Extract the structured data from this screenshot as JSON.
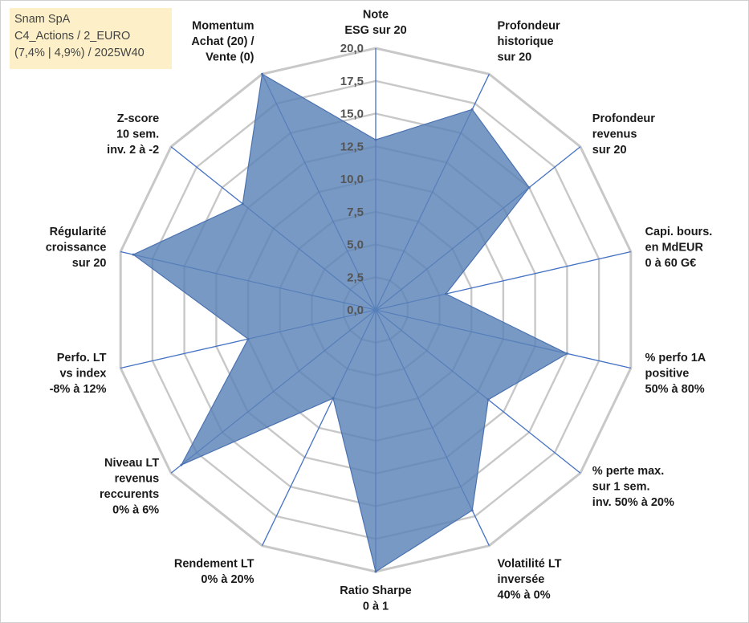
{
  "info_box": {
    "line1": "Snam SpA",
    "line2": "C4_Actions / 2_EURO",
    "line3": "(7,4% | 4,9%) / 2025W40"
  },
  "colors": {
    "grid": "#c8c8c8",
    "spoke": "#4472c4",
    "fill": "#5b82b8",
    "stroke": "#4a72b0"
  },
  "chart_data": {
    "type": "radar",
    "title": "",
    "rlim": [
      0,
      20
    ],
    "rticks": [
      "0,0",
      "2,5",
      "5,0",
      "7,5",
      "10,0",
      "12,5",
      "15,0",
      "17,5",
      "20,0"
    ],
    "categories": [
      [
        "Note",
        "ESG sur 20"
      ],
      [
        "Profondeur",
        "historique",
        "sur 20"
      ],
      [
        "Profondeur",
        "revenus",
        "sur 20"
      ],
      [
        "Capi. bours.",
        "en MdEUR",
        "0 à 60 G€"
      ],
      [
        "% perfo 1A",
        "positive",
        "50% à 80%"
      ],
      [
        "% perte max.",
        "sur 1 sem.",
        "inv. 50% à 20%"
      ],
      [
        "Volatilité LT",
        "inversée",
        "40% à 0%"
      ],
      [
        "Ratio Sharpe",
        "0 à 1"
      ],
      [
        "Rendement LT",
        "0% à 20%"
      ],
      [
        "Niveau LT",
        "revenus",
        "reccurents",
        "0% à 6%"
      ],
      [
        "Perfo. LT",
        "vs index",
        "-8% à 12%"
      ],
      [
        "Régularité",
        "croissance",
        "sur 20"
      ],
      [
        "Z-score",
        "10 sem.",
        "inv. 2 à -2"
      ],
      [
        "Momentum",
        "Achat (20) /",
        "Vente (0)"
      ]
    ],
    "series": [
      {
        "name": "Snam SpA",
        "values": [
          13,
          17,
          15,
          5.5,
          15,
          11,
          17,
          20,
          7.5,
          19,
          10,
          19,
          13,
          20
        ]
      }
    ]
  }
}
